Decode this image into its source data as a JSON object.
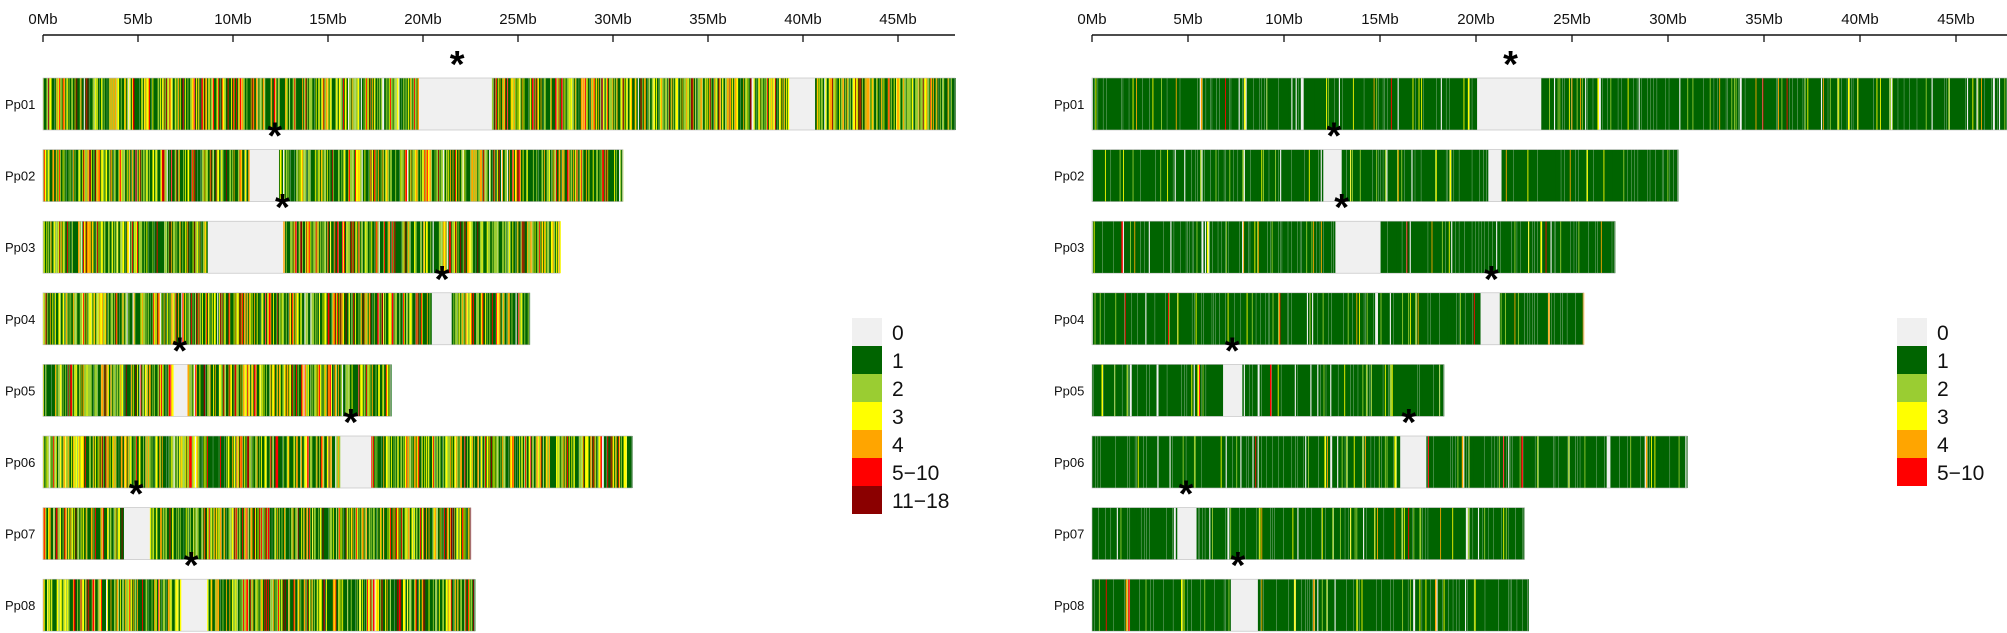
{
  "chart_data": [
    {
      "type": "heatmap",
      "name": "left-panel",
      "axis_unit": "Mb",
      "tick_labels": [
        "0Mb",
        "5Mb",
        "10Mb",
        "15Mb",
        "20Mb",
        "25Mb",
        "30Mb",
        "35Mb",
        "40Mb",
        "45Mb"
      ],
      "tick_values": [
        0,
        5,
        10,
        15,
        20,
        25,
        30,
        35,
        40,
        45
      ],
      "xlim": [
        0,
        48
      ],
      "chromosomes": [
        {
          "label": "Pp01",
          "length": 48.0,
          "centromere": 21.8,
          "gaps": [
            [
              19.8,
              23.6
            ],
            [
              39.2,
              40.6
            ]
          ]
        },
        {
          "label": "Pp02",
          "length": 30.5,
          "centromere": 12.2,
          "gaps": [
            [
              10.8,
              12.4
            ]
          ]
        },
        {
          "label": "Pp03",
          "length": 27.2,
          "centromere": 12.6,
          "gaps": [
            [
              8.6,
              12.6
            ]
          ]
        },
        {
          "label": "Pp04",
          "length": 25.6,
          "centromere": 21.0,
          "gaps": [
            [
              20.4,
              21.5
            ]
          ]
        },
        {
          "label": "Pp05",
          "length": 18.3,
          "centromere": 7.2,
          "gaps": [
            [
              6.8,
              7.6
            ]
          ]
        },
        {
          "label": "Pp06",
          "length": 31.0,
          "centromere": 16.2,
          "gaps": [
            [
              15.6,
              17.2
            ]
          ]
        },
        {
          "label": "Pp07",
          "length": 22.5,
          "centromere": 4.9,
          "gaps": [
            [
              4.2,
              5.6
            ]
          ]
        },
        {
          "label": "Pp08",
          "length": 22.7,
          "centromere": 7.8,
          "gaps": [
            [
              7.2,
              8.6
            ]
          ]
        }
      ],
      "legend": {
        "position": "right",
        "categories": [
          "0",
          "1",
          "2",
          "3",
          "4",
          "5−10",
          "11−18"
        ],
        "colors": [
          "#f0f0f0",
          "#006400",
          "#9acd32",
          "#ffff00",
          "#ffa500",
          "#ff0000",
          "#8b0000"
        ]
      },
      "category_weights": [
        0.1,
        0.4,
        0.22,
        0.13,
        0.08,
        0.05,
        0.02
      ]
    },
    {
      "type": "heatmap",
      "name": "right-panel",
      "axis_unit": "Mb",
      "tick_labels": [
        "0Mb",
        "5Mb",
        "10Mb",
        "15Mb",
        "20Mb",
        "25Mb",
        "30Mb",
        "35Mb",
        "40Mb",
        "45Mb"
      ],
      "tick_values": [
        0,
        5,
        10,
        15,
        20,
        25,
        30,
        35,
        40,
        45
      ],
      "xlim": [
        0,
        48
      ],
      "chromosomes": [
        {
          "label": "Pp01",
          "length": 48.0,
          "centromere": 21.8,
          "gaps": [
            [
              20.0,
              23.4
            ]
          ]
        },
        {
          "label": "Pp02",
          "length": 30.5,
          "centromere": 12.6,
          "gaps": [
            [
              12.0,
              13.0
            ],
            [
              20.6,
              21.3
            ]
          ]
        },
        {
          "label": "Pp03",
          "length": 27.2,
          "centromere": 13.0,
          "gaps": [
            [
              12.6,
              15.0
            ]
          ]
        },
        {
          "label": "Pp04",
          "length": 25.6,
          "centromere": 20.8,
          "gaps": [
            [
              20.2,
              21.2
            ]
          ]
        },
        {
          "label": "Pp05",
          "length": 18.3,
          "centromere": 7.3,
          "gaps": [
            [
              6.8,
              7.8
            ]
          ]
        },
        {
          "label": "Pp06",
          "length": 31.0,
          "centromere": 16.5,
          "gaps": [
            [
              16.0,
              17.4
            ]
          ]
        },
        {
          "label": "Pp07",
          "length": 22.5,
          "centromere": 4.9,
          "gaps": [
            [
              4.4,
              5.4
            ]
          ]
        },
        {
          "label": "Pp08",
          "length": 22.7,
          "centromere": 7.6,
          "gaps": [
            [
              7.2,
              8.6
            ]
          ]
        }
      ],
      "legend": {
        "position": "right",
        "categories": [
          "0",
          "1",
          "2",
          "3",
          "4",
          "5−10"
        ],
        "colors": [
          "#f0f0f0",
          "#006400",
          "#9acd32",
          "#ffff00",
          "#ffa500",
          "#ff0000"
        ]
      },
      "category_weights": [
        0.14,
        0.8,
        0.03,
        0.015,
        0.01,
        0.005
      ]
    }
  ]
}
